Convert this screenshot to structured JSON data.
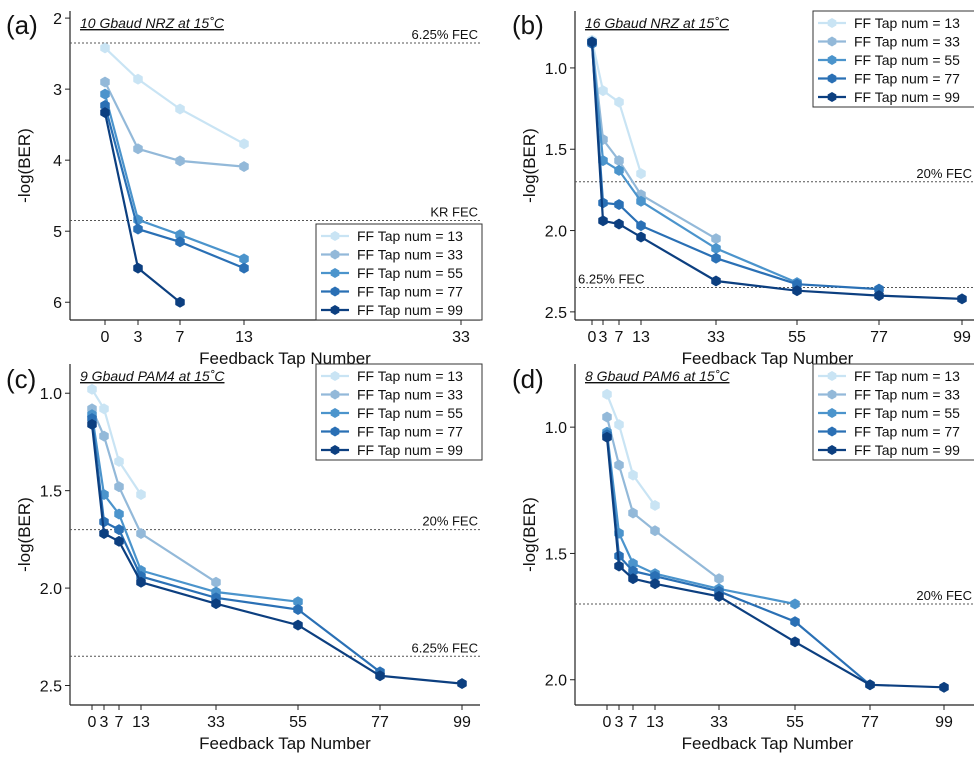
{
  "colors": {
    "FF13": "#c9e4f4",
    "FF33": "#93b9d9",
    "FF55": "#4b94cc",
    "FF77": "#2a70b5",
    "FF99": "#0c3f80",
    "ref": "#555555"
  },
  "chart_data": [
    {
      "type": "line",
      "panel": "(a)",
      "title": "10 Gbaud NRZ at 15˚C",
      "xlabel": "Feedback Tap Number",
      "ylabel": "-log(BER)",
      "x_ticks": [
        0,
        3,
        7,
        13,
        33
      ],
      "x_tick_labels": [
        "0",
        "3",
        "7",
        "13",
        "33"
      ],
      "y_ticks": [
        2,
        3,
        4,
        5,
        6
      ],
      "y_tick_labels": [
        "2",
        "3",
        "4",
        "5",
        "6"
      ],
      "ylim": [
        1.9,
        6.25
      ],
      "y_inverted": true,
      "legend_position": "bottom-right",
      "ref_lines": [
        {
          "y": 2.35,
          "label": "6.25% FEC"
        },
        {
          "y": 4.85,
          "label": "KR FEC"
        }
      ],
      "series": [
        {
          "name": "FF Tap num = 13",
          "x": [
            0,
            3,
            7,
            13
          ],
          "y": [
            2.42,
            2.86,
            3.28,
            3.77
          ]
        },
        {
          "name": "FF Tap num = 33",
          "x": [
            0,
            3,
            7,
            13
          ],
          "y": [
            2.9,
            3.84,
            4.01,
            4.09
          ]
        },
        {
          "name": "FF Tap num = 55",
          "x": [
            0,
            3,
            7,
            13
          ],
          "y": [
            3.07,
            4.84,
            5.05,
            5.39
          ]
        },
        {
          "name": "FF Tap num = 77",
          "x": [
            0,
            3,
            7,
            13
          ],
          "y": [
            3.23,
            4.97,
            5.15,
            5.52
          ]
        },
        {
          "name": "FF Tap num = 99",
          "x": [
            0,
            3,
            7
          ],
          "y": [
            3.33,
            5.52,
            6.0
          ]
        }
      ]
    },
    {
      "type": "line",
      "panel": "(b)",
      "title": "16 Gbaud NRZ at 15˚C",
      "xlabel": "Feedback Tap Number",
      "ylabel": "-log(BER)",
      "x_ticks": [
        0,
        3,
        7,
        13,
        33,
        55,
        77,
        99
      ],
      "x_tick_labels": [
        "0",
        "3",
        "7",
        "13",
        "33",
        "55",
        "77",
        "99"
      ],
      "y_ticks": [
        1.0,
        1.5,
        2.0,
        2.5
      ],
      "y_tick_labels": [
        "1.0",
        "1.5",
        "2.0",
        "2.5"
      ],
      "ylim": [
        0.65,
        2.55
      ],
      "y_inverted": true,
      "legend_position": "top-right",
      "ref_lines": [
        {
          "y": 1.7,
          "label": "20% FEC"
        },
        {
          "y": 2.35,
          "label": "6.25% FEC"
        }
      ],
      "series": [
        {
          "name": "FF Tap num = 13",
          "x": [
            0,
            3,
            7,
            13
          ],
          "y": [
            0.83,
            1.14,
            1.21,
            1.65
          ]
        },
        {
          "name": "FF Tap num = 33",
          "x": [
            0,
            3,
            7,
            13,
            33
          ],
          "y": [
            0.84,
            1.44,
            1.57,
            1.78,
            2.05
          ]
        },
        {
          "name": "FF Tap num = 55",
          "x": [
            0,
            3,
            7,
            13,
            33,
            55
          ],
          "y": [
            0.84,
            1.57,
            1.63,
            1.82,
            2.11,
            2.32
          ]
        },
        {
          "name": "FF Tap num = 77",
          "x": [
            0,
            3,
            7,
            13,
            33,
            55,
            77
          ],
          "y": [
            0.85,
            1.83,
            1.84,
            1.97,
            2.17,
            2.33,
            2.36
          ]
        },
        {
          "name": "FF Tap num = 99",
          "x": [
            0,
            3,
            7,
            13,
            33,
            55,
            77,
            99
          ],
          "y": [
            0.84,
            1.94,
            1.96,
            2.04,
            2.31,
            2.37,
            2.4,
            2.42
          ]
        }
      ]
    },
    {
      "type": "line",
      "panel": "(c)",
      "title": "9 Gbaud PAM4 at 15˚C",
      "xlabel": "Feedback Tap Number",
      "ylabel": "-log(BER)",
      "x_ticks": [
        0,
        3,
        7,
        13,
        33,
        55,
        77,
        99
      ],
      "x_tick_labels": [
        "0",
        "3",
        "7",
        "13",
        "33",
        "55",
        "77",
        "99"
      ],
      "y_ticks": [
        1.0,
        1.5,
        2.0,
        2.5
      ],
      "y_tick_labels": [
        "1.0",
        "1.5",
        "2.0",
        "2.5"
      ],
      "ylim": [
        0.85,
        2.6
      ],
      "y_inverted": true,
      "legend_position": "top-right",
      "ref_lines": [
        {
          "y": 1.7,
          "label": "20% FEC"
        },
        {
          "y": 2.35,
          "label": "6.25% FEC"
        }
      ],
      "series": [
        {
          "name": "FF Tap num = 13",
          "x": [
            0,
            3,
            7,
            13
          ],
          "y": [
            0.98,
            1.08,
            1.35,
            1.52
          ]
        },
        {
          "name": "FF Tap num = 33",
          "x": [
            0,
            3,
            7,
            13,
            33
          ],
          "y": [
            1.08,
            1.22,
            1.48,
            1.72,
            1.97
          ]
        },
        {
          "name": "FF Tap num = 55",
          "x": [
            0,
            3,
            7,
            13,
            33,
            55
          ],
          "y": [
            1.11,
            1.52,
            1.62,
            1.91,
            2.02,
            2.07
          ]
        },
        {
          "name": "FF Tap num = 77",
          "x": [
            0,
            3,
            7,
            13,
            33,
            55,
            77
          ],
          "y": [
            1.13,
            1.66,
            1.7,
            1.94,
            2.05,
            2.11,
            2.43
          ]
        },
        {
          "name": "FF Tap num = 99",
          "x": [
            0,
            3,
            7,
            13,
            33,
            55,
            77,
            99
          ],
          "y": [
            1.16,
            1.72,
            1.76,
            1.97,
            2.08,
            2.19,
            2.45,
            2.49
          ]
        }
      ]
    },
    {
      "type": "line",
      "panel": "(d)",
      "title": "8 Gbaud PAM6 at 15˚C",
      "xlabel": "Feedback Tap Number",
      "ylabel": "-log(BER)",
      "x_ticks": [
        0,
        3,
        7,
        13,
        33,
        55,
        77,
        99
      ],
      "x_tick_labels": [
        "0",
        "3",
        "7",
        "13",
        "33",
        "55",
        "77",
        "99"
      ],
      "y_ticks": [
        1.0,
        1.5,
        2.0
      ],
      "y_tick_labels": [
        "1.0",
        "1.5",
        "2.0"
      ],
      "ylim": [
        0.75,
        2.1
      ],
      "y_inverted": true,
      "legend_position": "top-right",
      "ref_lines": [
        {
          "y": 1.7,
          "label": "20% FEC"
        }
      ],
      "series": [
        {
          "name": "FF Tap num = 13",
          "x": [
            0,
            3,
            7,
            13
          ],
          "y": [
            0.87,
            0.99,
            1.19,
            1.31
          ]
        },
        {
          "name": "FF Tap num = 33",
          "x": [
            0,
            3,
            7,
            13,
            33
          ],
          "y": [
            0.96,
            1.15,
            1.34,
            1.41,
            1.6
          ]
        },
        {
          "name": "FF Tap num = 55",
          "x": [
            0,
            3,
            7,
            13,
            33,
            55
          ],
          "y": [
            1.02,
            1.42,
            1.54,
            1.58,
            1.64,
            1.7
          ]
        },
        {
          "name": "FF Tap num = 77",
          "x": [
            0,
            3,
            7,
            13,
            33,
            55,
            77
          ],
          "y": [
            1.03,
            1.51,
            1.57,
            1.59,
            1.65,
            1.77,
            2.02
          ]
        },
        {
          "name": "FF Tap num = 99",
          "x": [
            0,
            3,
            7,
            13,
            33,
            55,
            77,
            99
          ],
          "y": [
            1.04,
            1.55,
            1.6,
            1.62,
            1.67,
            1.85,
            2.02,
            2.03
          ]
        }
      ]
    }
  ]
}
